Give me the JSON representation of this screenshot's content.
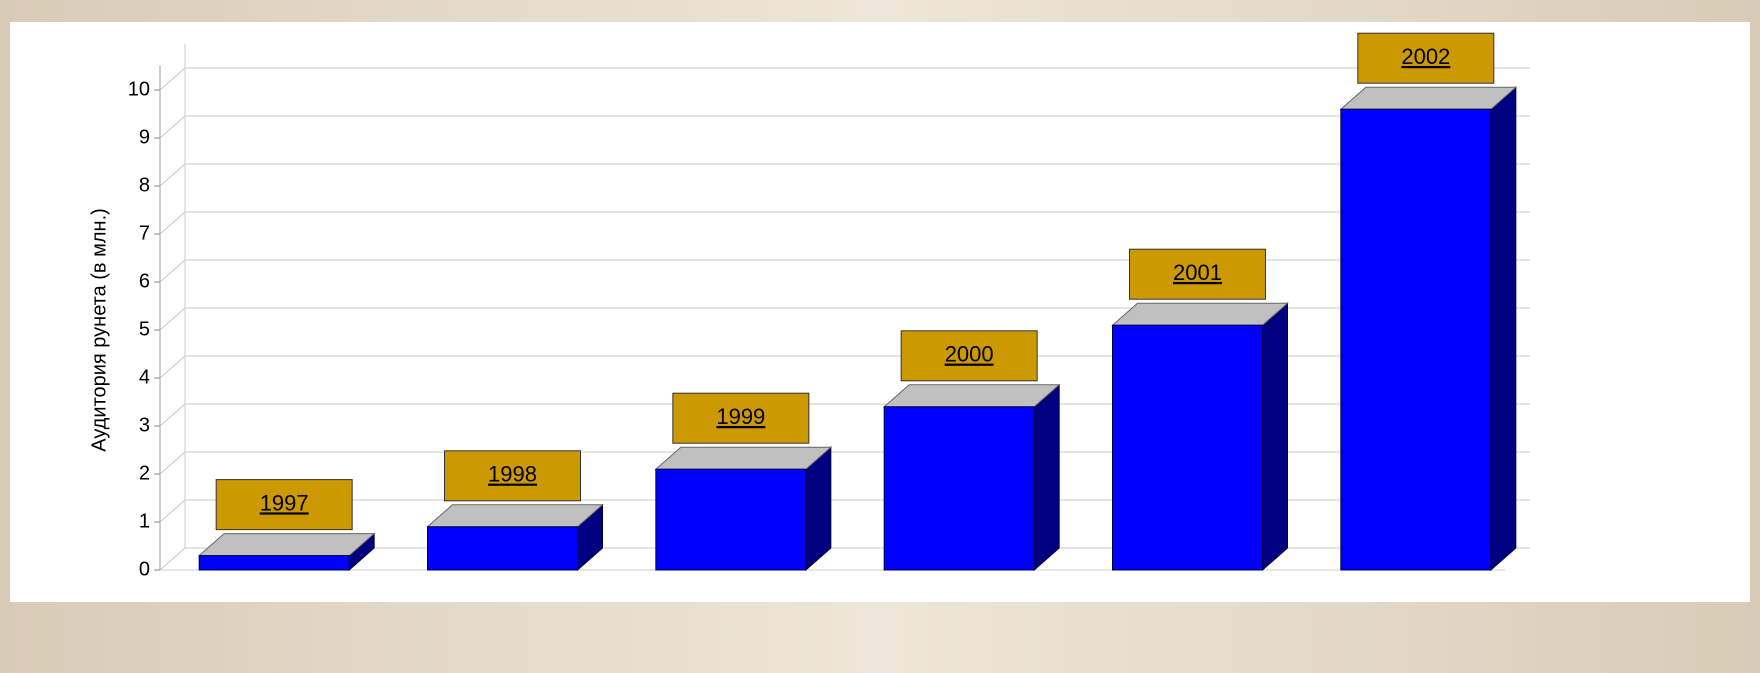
{
  "chart_data": {
    "type": "bar3d",
    "y_axis_label": "Аудитория рунета (в млн.)",
    "categories": [
      "1997",
      "1998",
      "1999",
      "2000",
      "2001",
      "2002"
    ],
    "values": [
      0.3,
      0.9,
      2.1,
      3.4,
      5.1,
      9.6
    ],
    "color": "#0000ff",
    "ylim": [
      0,
      10.5
    ],
    "yticks": [
      0,
      1,
      2,
      3,
      4,
      5,
      6,
      7,
      8,
      9,
      10
    ],
    "grid": true
  }
}
